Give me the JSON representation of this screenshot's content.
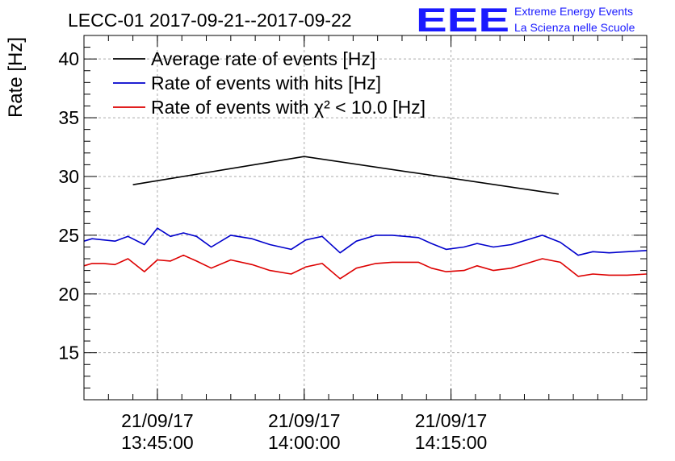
{
  "chart_data": {
    "type": "line",
    "title": "LECC-01 2017-09-21--2017-09-22",
    "xlabel": "",
    "ylabel": "Rate [Hz]",
    "ylim": [
      11,
      42
    ],
    "xlim": [
      "13:37:30",
      "14:35:00"
    ],
    "y_ticks": [
      15,
      20,
      25,
      30,
      35,
      40
    ],
    "x_ticks": [
      {
        "date": "21/09/17",
        "time": "13:45:00",
        "t": "13:45:00"
      },
      {
        "date": "21/09/17",
        "time": "14:00:00",
        "t": "14:00:00"
      },
      {
        "date": "21/09/17",
        "time": "14:15:00",
        "t": "14:15:00"
      }
    ],
    "grid": true,
    "legend_position": "top-left",
    "series": [
      {
        "name": "Average rate of events [Hz]",
        "color": "#000000",
        "x": [
          "13:42:30",
          "14:00:00",
          "14:26:00"
        ],
        "y": [
          29.3,
          31.7,
          28.5
        ]
      },
      {
        "name": "Rate of events with hits [Hz]",
        "color": "#0000cc",
        "x": [
          "13:37:30",
          "13:38:20",
          "13:39:30",
          "13:40:40",
          "13:42:00",
          "13:43:40",
          "13:45:00",
          "13:46:20",
          "13:47:40",
          "13:49:00",
          "13:50:30",
          "13:52:30",
          "13:54:40",
          "13:56:30",
          "13:58:40",
          "14:00:10",
          "14:01:50",
          "14:03:40",
          "14:05:20",
          "14:07:20",
          "14:09:00",
          "14:11:40",
          "14:13:00",
          "14:14:30",
          "14:16:20",
          "14:17:40",
          "14:19:20",
          "14:21:10",
          "14:24:20",
          "14:26:10",
          "14:28:00",
          "14:29:30",
          "14:31:10",
          "14:33:00",
          "14:35:00"
        ],
        "y": [
          24.5,
          24.7,
          24.6,
          24.5,
          24.9,
          24.2,
          25.6,
          24.9,
          25.2,
          24.9,
          24.0,
          25.0,
          24.7,
          24.2,
          23.8,
          24.6,
          24.9,
          23.5,
          24.5,
          25.0,
          25.0,
          24.8,
          24.3,
          23.8,
          24.0,
          24.3,
          24.0,
          24.2,
          25.0,
          24.4,
          23.3,
          23.6,
          23.5,
          23.6,
          23.7
        ]
      },
      {
        "name": "Rate of events with χ² < 10.0 [Hz]",
        "color": "#dd0000",
        "x": [
          "13:37:30",
          "13:38:20",
          "13:39:30",
          "13:40:40",
          "13:42:00",
          "13:43:40",
          "13:45:00",
          "13:46:20",
          "13:47:40",
          "13:49:00",
          "13:50:30",
          "13:52:30",
          "13:54:40",
          "13:56:30",
          "13:58:40",
          "14:00:10",
          "14:01:50",
          "14:03:40",
          "14:05:20",
          "14:07:20",
          "14:09:00",
          "14:11:40",
          "14:13:00",
          "14:14:30",
          "14:16:20",
          "14:17:40",
          "14:19:20",
          "14:21:10",
          "14:24:20",
          "14:26:10",
          "14:28:00",
          "14:29:30",
          "14:31:10",
          "14:33:00",
          "14:35:00"
        ],
        "y": [
          22.4,
          22.6,
          22.6,
          22.5,
          23.0,
          21.9,
          22.9,
          22.8,
          23.3,
          22.8,
          22.2,
          22.9,
          22.5,
          22.0,
          21.7,
          22.3,
          22.6,
          21.3,
          22.2,
          22.6,
          22.7,
          22.7,
          22.2,
          21.9,
          22.0,
          22.4,
          22.0,
          22.2,
          23.0,
          22.7,
          21.5,
          21.7,
          21.6,
          21.6,
          21.7
        ]
      }
    ]
  },
  "logo": {
    "text": "EEE",
    "line1": "Extreme Energy Events",
    "line2": "La Scienza nelle Scuole",
    "color": "#1a1aff"
  }
}
